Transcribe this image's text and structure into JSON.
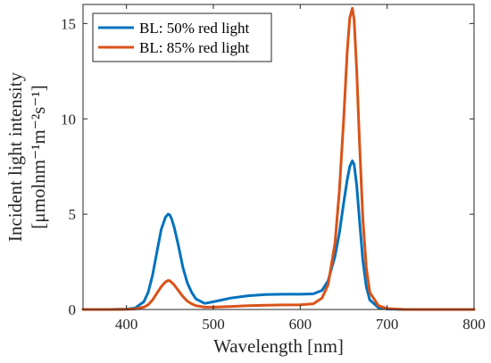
{
  "chart_data": {
    "type": "line",
    "xlabel": "Wavelength [nm]",
    "ylabel_line1": "Incident light intensity",
    "ylabel_line2": "[μmolnm⁻¹m⁻²s⁻¹]",
    "xlim": [
      350,
      800
    ],
    "ylim": [
      0,
      16
    ],
    "xticks": [
      400,
      500,
      600,
      700,
      800
    ],
    "yticks": [
      0,
      5,
      10,
      15
    ],
    "grid": false,
    "legend_position": "top-left",
    "series": [
      {
        "name": "BL: 50% red light",
        "color": "#0072BD",
        "x": [
          350,
          380,
          400,
          410,
          420,
          425,
          430,
          435,
          440,
          445,
          448,
          450,
          452,
          455,
          460,
          465,
          470,
          475,
          480,
          490,
          500,
          520,
          540,
          560,
          580,
          600,
          615,
          625,
          632,
          640,
          645,
          650,
          654,
          657,
          660,
          662,
          665,
          668,
          672,
          676,
          680,
          690,
          700,
          720,
          750,
          800
        ],
        "y": [
          0,
          0,
          0.02,
          0.08,
          0.4,
          0.9,
          1.8,
          3.0,
          4.2,
          4.85,
          5.0,
          4.95,
          4.75,
          4.3,
          3.3,
          2.2,
          1.4,
          0.9,
          0.55,
          0.32,
          0.4,
          0.6,
          0.72,
          0.78,
          0.8,
          0.8,
          0.82,
          1.0,
          1.5,
          2.8,
          4.0,
          5.6,
          6.8,
          7.5,
          7.8,
          7.6,
          6.5,
          4.8,
          2.6,
          1.2,
          0.5,
          0.1,
          0.03,
          0,
          0,
          0
        ]
      },
      {
        "name": "BL: 85% red light",
        "color": "#D95319",
        "x": [
          350,
          380,
          400,
          410,
          420,
          425,
          430,
          435,
          440,
          445,
          448,
          450,
          452,
          455,
          460,
          465,
          470,
          475,
          480,
          490,
          500,
          520,
          540,
          560,
          580,
          600,
          615,
          625,
          632,
          640,
          645,
          650,
          654,
          657,
          660,
          662,
          665,
          668,
          672,
          676,
          680,
          690,
          700,
          720,
          750,
          800
        ],
        "y": [
          0,
          0,
          0.01,
          0.03,
          0.12,
          0.25,
          0.5,
          0.85,
          1.2,
          1.45,
          1.52,
          1.5,
          1.42,
          1.28,
          0.98,
          0.68,
          0.44,
          0.3,
          0.2,
          0.12,
          0.12,
          0.16,
          0.2,
          0.22,
          0.24,
          0.25,
          0.3,
          0.6,
          1.3,
          3.5,
          6.2,
          10.0,
          13.5,
          15.3,
          15.8,
          15.2,
          12.5,
          9.0,
          4.8,
          2.2,
          0.9,
          0.2,
          0.05,
          0,
          0,
          0
        ]
      }
    ]
  }
}
